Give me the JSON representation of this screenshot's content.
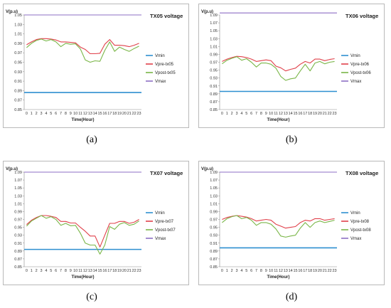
{
  "chart_data": [
    {
      "type": "line",
      "caption": "(a)",
      "title": "TX05 voltage",
      "ylabel": "V(p.u)",
      "xlabel": "Time(Hour)",
      "ylim": [
        0.85,
        1.05
      ],
      "yticks": [
        "0.85",
        "0.87",
        "0.89",
        "0.91",
        "0.93",
        "0.95",
        "0.97",
        "0.99",
        "1.01",
        "1.03",
        "1.05"
      ],
      "x": [
        0,
        1,
        2,
        3,
        4,
        5,
        6,
        7,
        8,
        9,
        10,
        11,
        12,
        13,
        14,
        15,
        16,
        17,
        18,
        19,
        20,
        21,
        22,
        23
      ],
      "legend_position": "right",
      "series": [
        {
          "name": "Vmin",
          "color": "#2e8fd0",
          "values": [
            0.886,
            0.886,
            0.886,
            0.886,
            0.886,
            0.886,
            0.886,
            0.886,
            0.886,
            0.886,
            0.886,
            0.886,
            0.886,
            0.886,
            0.886,
            0.886,
            0.886,
            0.886,
            0.886,
            0.886,
            0.886,
            0.886,
            0.886,
            0.886
          ]
        },
        {
          "name": "Vpre-tx05",
          "color": "#e0404a",
          "values": [
            0.987,
            0.993,
            0.998,
            1.0,
            1.0,
            0.999,
            0.997,
            0.993,
            0.993,
            0.992,
            0.991,
            0.982,
            0.977,
            0.968,
            0.968,
            0.969,
            0.988,
            0.998,
            0.986,
            0.986,
            0.985,
            0.983,
            0.986,
            0.99
          ]
        },
        {
          "name": "Vpost-tx05",
          "color": "#7ab648",
          "values": [
            0.981,
            0.99,
            0.996,
            0.999,
            0.995,
            0.998,
            0.993,
            0.983,
            0.99,
            0.988,
            0.989,
            0.978,
            0.955,
            0.95,
            0.953,
            0.952,
            0.975,
            0.993,
            0.973,
            0.982,
            0.977,
            0.973,
            0.979,
            0.984
          ]
        },
        {
          "name": "Vmax",
          "color": "#8e6fc4",
          "values": [
            1.05,
            1.05,
            1.05,
            1.05,
            1.05,
            1.05,
            1.05,
            1.05,
            1.05,
            1.05,
            1.05,
            1.05,
            1.05,
            1.05,
            1.05,
            1.05,
            1.05,
            1.05,
            1.05,
            1.05,
            1.05,
            1.05,
            1.05,
            1.05
          ]
        }
      ]
    },
    {
      "type": "line",
      "caption": "(b)",
      "title": "TX06 voltage",
      "ylabel": "V(p.u)",
      "xlabel": "Time(Hour)",
      "ylim": [
        0.85,
        1.09
      ],
      "yticks": [
        "0.85",
        "0.87",
        "0.89",
        "0.91",
        "0.93",
        "0.95",
        "0.97",
        "0.99",
        "1.01",
        "1.03",
        "1.05",
        "1.07",
        "1.09"
      ],
      "x": [
        0,
        1,
        2,
        3,
        4,
        5,
        6,
        7,
        8,
        9,
        10,
        11,
        12,
        13,
        14,
        15,
        16,
        17,
        18,
        19,
        20,
        21,
        22,
        23
      ],
      "legend_position": "right",
      "series": [
        {
          "name": "Vmin",
          "color": "#2e8fd0",
          "values": [
            0.896,
            0.896,
            0.896,
            0.896,
            0.896,
            0.896,
            0.896,
            0.896,
            0.896,
            0.896,
            0.896,
            0.896,
            0.896,
            0.896,
            0.896,
            0.896,
            0.896,
            0.896,
            0.896,
            0.896,
            0.896,
            0.896,
            0.896,
            0.896
          ]
        },
        {
          "name": "Vpre-tx06",
          "color": "#e0404a",
          "values": [
            0.972,
            0.978,
            0.982,
            0.985,
            0.984,
            0.982,
            0.978,
            0.972,
            0.974,
            0.976,
            0.974,
            0.96,
            0.956,
            0.948,
            0.952,
            0.955,
            0.965,
            0.972,
            0.968,
            0.978,
            0.978,
            0.974,
            0.977,
            0.979
          ]
        },
        {
          "name": "Vpost-tx06",
          "color": "#7ab648",
          "values": [
            0.966,
            0.975,
            0.98,
            0.984,
            0.975,
            0.979,
            0.97,
            0.958,
            0.968,
            0.968,
            0.965,
            0.955,
            0.934,
            0.924,
            0.928,
            0.93,
            0.948,
            0.965,
            0.948,
            0.968,
            0.972,
            0.966,
            0.97,
            0.972
          ]
        },
        {
          "name": "Vmax",
          "color": "#8e6fc4",
          "values": [
            1.095,
            1.095,
            1.095,
            1.095,
            1.095,
            1.095,
            1.095,
            1.095,
            1.095,
            1.095,
            1.095,
            1.095,
            1.095,
            1.095,
            1.095,
            1.095,
            1.095,
            1.095,
            1.095,
            1.095,
            1.095,
            1.095,
            1.095,
            1.095
          ]
        }
      ]
    },
    {
      "type": "line",
      "caption": "(c)",
      "title": "TX07 voltage",
      "ylabel": "V(p.u)",
      "xlabel": "Time(Hour)",
      "ylim": [
        0.85,
        1.09
      ],
      "yticks": [
        "0.85",
        "0.87",
        "0.89",
        "0.91",
        "0.93",
        "0.95",
        "0.97",
        "0.99",
        "1.01",
        "1.03",
        "1.05",
        "1.07",
        "1.09"
      ],
      "x": [
        0,
        1,
        2,
        3,
        4,
        5,
        6,
        7,
        8,
        9,
        10,
        11,
        12,
        13,
        14,
        15,
        16,
        17,
        18,
        19,
        20,
        21,
        22,
        23
      ],
      "legend_position": "right",
      "series": [
        {
          "name": "Vmin",
          "color": "#2e8fd0",
          "values": [
            0.894,
            0.894,
            0.894,
            0.894,
            0.894,
            0.894,
            0.894,
            0.894,
            0.894,
            0.894,
            0.894,
            0.894,
            0.894,
            0.894,
            0.894,
            0.894,
            0.894,
            0.894,
            0.894,
            0.894,
            0.894,
            0.894,
            0.894,
            0.894
          ]
        },
        {
          "name": "Vpre-tx07",
          "color": "#e0404a",
          "values": [
            0.957,
            0.968,
            0.975,
            0.98,
            0.98,
            0.978,
            0.975,
            0.965,
            0.965,
            0.961,
            0.961,
            0.95,
            0.94,
            0.928,
            0.928,
            0.9,
            0.93,
            0.96,
            0.96,
            0.965,
            0.965,
            0.96,
            0.963,
            0.97
          ]
        },
        {
          "name": "Vpost-tx07",
          "color": "#7ab648",
          "values": [
            0.953,
            0.966,
            0.973,
            0.98,
            0.973,
            0.977,
            0.97,
            0.955,
            0.96,
            0.954,
            0.955,
            0.935,
            0.91,
            0.905,
            0.905,
            0.882,
            0.905,
            0.952,
            0.945,
            0.958,
            0.962,
            0.955,
            0.958,
            0.966
          ]
        },
        {
          "name": "Vmax",
          "color": "#8e6fc4",
          "values": [
            1.09,
            1.09,
            1.09,
            1.09,
            1.09,
            1.09,
            1.09,
            1.09,
            1.09,
            1.09,
            1.09,
            1.09,
            1.09,
            1.09,
            1.09,
            1.09,
            1.09,
            1.09,
            1.09,
            1.09,
            1.09,
            1.09,
            1.09,
            1.09
          ]
        }
      ]
    },
    {
      "type": "line",
      "caption": "(d)",
      "title": "TX08 voltage",
      "ylabel": "V(p.u)",
      "xlabel": "Time(Hour)",
      "ylim": [
        0.85,
        1.09
      ],
      "yticks": [
        "0.85",
        "0.87",
        "0.89",
        "0.91",
        "0.93",
        "0.95",
        "0.97",
        "0.99",
        "1.01",
        "1.03",
        "1.05",
        "1.07",
        "1.09"
      ],
      "x": [
        0,
        1,
        2,
        3,
        4,
        5,
        6,
        7,
        8,
        9,
        10,
        11,
        12,
        13,
        14,
        15,
        16,
        17,
        18,
        19,
        20,
        21,
        22,
        23
      ],
      "legend_position": "right",
      "series": [
        {
          "name": "Vmin",
          "color": "#2e8fd0",
          "values": [
            0.898,
            0.898,
            0.898,
            0.898,
            0.898,
            0.898,
            0.898,
            0.898,
            0.898,
            0.898,
            0.898,
            0.898,
            0.898,
            0.898,
            0.898,
            0.898,
            0.898,
            0.898,
            0.898,
            0.898,
            0.898,
            0.898,
            0.898,
            0.898
          ]
        },
        {
          "name": "Vpre-tx08",
          "color": "#e0404a",
          "values": [
            0.97,
            0.975,
            0.978,
            0.98,
            0.978,
            0.976,
            0.972,
            0.966,
            0.968,
            0.97,
            0.968,
            0.958,
            0.953,
            0.948,
            0.95,
            0.952,
            0.962,
            0.968,
            0.966,
            0.972,
            0.972,
            0.968,
            0.97,
            0.972
          ]
        },
        {
          "name": "Vpost-tx08",
          "color": "#7ab648",
          "values": [
            0.962,
            0.972,
            0.977,
            0.98,
            0.972,
            0.975,
            0.968,
            0.955,
            0.962,
            0.962,
            0.958,
            0.946,
            0.928,
            0.925,
            0.928,
            0.93,
            0.948,
            0.962,
            0.95,
            0.962,
            0.966,
            0.962,
            0.965,
            0.968
          ]
        },
        {
          "name": "Vmax",
          "color": "#8e6fc4",
          "values": [
            1.09,
            1.09,
            1.09,
            1.09,
            1.09,
            1.09,
            1.09,
            1.09,
            1.09,
            1.09,
            1.09,
            1.09,
            1.09,
            1.09,
            1.09,
            1.09,
            1.09,
            1.09,
            1.09,
            1.09,
            1.09,
            1.09,
            1.09,
            1.09
          ]
        }
      ]
    }
  ]
}
